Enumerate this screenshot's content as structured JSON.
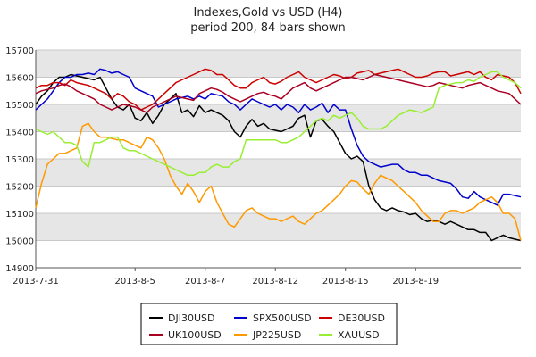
{
  "chart_data": {
    "type": "line",
    "title": "Indexes,Gold vs USD (H4)",
    "subtitle": "period 200, 84 bars shown",
    "xlabel": "",
    "ylabel": "",
    "ylim": [
      14900,
      15700
    ],
    "y_ticks": [
      14900,
      15000,
      15100,
      15200,
      15300,
      15400,
      15500,
      15600,
      15700
    ],
    "x_ticks": [
      {
        "label": "2013-7-31",
        "bar": 0
      },
      {
        "label": "2013-8-5",
        "bar": 17
      },
      {
        "label": "2013-8-7",
        "bar": 29
      },
      {
        "label": "2013-8-12",
        "bar": 41
      },
      {
        "label": "2013-8-15",
        "bar": 53
      },
      {
        "label": "2013-8-19",
        "bar": 65
      }
    ],
    "bars_shown": 84,
    "grid": "horizontal bands",
    "legend_position": "bottom",
    "series": [
      {
        "name": "DJI30USD",
        "color": "#000000",
        "values": [
          15500,
          15530,
          15550,
          15580,
          15600,
          15600,
          15610,
          15605,
          15600,
          15595,
          15590,
          15600,
          15560,
          15520,
          15490,
          15480,
          15500,
          15450,
          15440,
          15470,
          15430,
          15460,
          15500,
          15520,
          15540,
          15470,
          15480,
          15455,
          15495,
          15470,
          15480,
          15470,
          15460,
          15440,
          15400,
          15380,
          15420,
          15445,
          15420,
          15430,
          15410,
          15405,
          15400,
          15410,
          15420,
          15450,
          15460,
          15380,
          15440,
          15445,
          15420,
          15400,
          15360,
          15320,
          15300,
          15310,
          15290,
          15200,
          15150,
          15120,
          15110,
          15120,
          15110,
          15105,
          15095,
          15100,
          15080,
          15070,
          15075,
          15070,
          15060,
          15070,
          15060,
          15050,
          15040,
          15040,
          15030,
          15030,
          15000,
          15010,
          15020,
          15010,
          15005,
          15000
        ]
      },
      {
        "name": "SPX500USD",
        "color": "#0000cc",
        "values": [
          15480,
          15500,
          15520,
          15550,
          15580,
          15600,
          15600,
          15610,
          15610,
          15615,
          15610,
          15630,
          15625,
          15615,
          15620,
          15610,
          15600,
          15560,
          15550,
          15540,
          15530,
          15490,
          15500,
          15510,
          15520,
          15525,
          15530,
          15520,
          15530,
          15520,
          15540,
          15535,
          15530,
          15510,
          15500,
          15480,
          15500,
          15520,
          15510,
          15500,
          15490,
          15500,
          15480,
          15500,
          15490,
          15470,
          15500,
          15480,
          15490,
          15505,
          15470,
          15500,
          15480,
          15480,
          15410,
          15350,
          15310,
          15290,
          15280,
          15270,
          15275,
          15280,
          15280,
          15260,
          15250,
          15250,
          15240,
          15240,
          15230,
          15220,
          15215,
          15210,
          15190,
          15160,
          15155,
          15180,
          15160,
          15150,
          15140,
          15130,
          15170,
          15170,
          15165,
          15160
        ]
      },
      {
        "name": "DE30USD",
        "color": "#cc0000",
        "values": [
          15560,
          15570,
          15570,
          15580,
          15580,
          15570,
          15590,
          15580,
          15575,
          15570,
          15560,
          15550,
          15540,
          15520,
          15540,
          15530,
          15510,
          15500,
          15480,
          15490,
          15500,
          15520,
          15540,
          15560,
          15580,
          15590,
          15600,
          15610,
          15620,
          15630,
          15625,
          15610,
          15610,
          15590,
          15570,
          15560,
          15560,
          15580,
          15590,
          15600,
          15580,
          15575,
          15585,
          15600,
          15610,
          15620,
          15600,
          15590,
          15580,
          15590,
          15600,
          15610,
          15605,
          15595,
          15600,
          15615,
          15620,
          15625,
          15610,
          15615,
          15620,
          15625,
          15630,
          15620,
          15610,
          15600,
          15600,
          15605,
          15615,
          15620,
          15620,
          15605,
          15610,
          15615,
          15620,
          15610,
          15620,
          15600,
          15590,
          15610,
          15605,
          15600,
          15580,
          15540
        ]
      },
      {
        "name": "UK100USD",
        "color": "#aa0022",
        "values": [
          15540,
          15550,
          15555,
          15560,
          15570,
          15575,
          15565,
          15550,
          15540,
          15530,
          15520,
          15500,
          15490,
          15480,
          15490,
          15500,
          15495,
          15490,
          15480,
          15470,
          15490,
          15500,
          15510,
          15520,
          15530,
          15525,
          15520,
          15515,
          15540,
          15550,
          15560,
          15555,
          15545,
          15530,
          15520,
          15510,
          15520,
          15530,
          15540,
          15545,
          15535,
          15530,
          15520,
          15540,
          15560,
          15570,
          15580,
          15560,
          15550,
          15560,
          15570,
          15580,
          15590,
          15600,
          15600,
          15595,
          15590,
          15600,
          15610,
          15605,
          15600,
          15595,
          15590,
          15585,
          15580,
          15575,
          15570,
          15565,
          15570,
          15580,
          15575,
          15570,
          15565,
          15560,
          15570,
          15575,
          15580,
          15570,
          15560,
          15550,
          15545,
          15540,
          15520,
          15500
        ]
      },
      {
        "name": "JP225USD",
        "color": "#ff9900",
        "values": [
          15120,
          15210,
          15280,
          15300,
          15320,
          15320,
          15330,
          15340,
          15420,
          15430,
          15400,
          15380,
          15380,
          15375,
          15370,
          15370,
          15360,
          15350,
          15340,
          15380,
          15370,
          15340,
          15300,
          15240,
          15200,
          15170,
          15210,
          15180,
          15140,
          15180,
          15200,
          15140,
          15100,
          15060,
          15050,
          15080,
          15110,
          15120,
          15100,
          15090,
          15080,
          15080,
          15070,
          15080,
          15090,
          15070,
          15060,
          15080,
          15100,
          15110,
          15130,
          15150,
          15170,
          15200,
          15220,
          15215,
          15190,
          15170,
          15210,
          15240,
          15230,
          15220,
          15200,
          15180,
          15160,
          15140,
          15110,
          15090,
          15070,
          15070,
          15100,
          15110,
          15110,
          15100,
          15110,
          15120,
          15140,
          15150,
          15160,
          15140,
          15100,
          15100,
          15080,
          15000
        ]
      },
      {
        "name": "XAUUSD",
        "color": "#99ee33",
        "values": [
          15410,
          15400,
          15390,
          15400,
          15380,
          15360,
          15360,
          15350,
          15290,
          15270,
          15360,
          15360,
          15370,
          15380,
          15380,
          15340,
          15330,
          15330,
          15320,
          15310,
          15300,
          15290,
          15280,
          15270,
          15260,
          15250,
          15240,
          15240,
          15250,
          15250,
          15270,
          15280,
          15270,
          15270,
          15290,
          15300,
          15370,
          15370,
          15370,
          15370,
          15370,
          15370,
          15360,
          15360,
          15370,
          15380,
          15400,
          15420,
          15440,
          15450,
          15440,
          15460,
          15450,
          15460,
          15470,
          15450,
          15420,
          15410,
          15410,
          15410,
          15420,
          15440,
          15460,
          15470,
          15480,
          15475,
          15470,
          15480,
          15490,
          15560,
          15570,
          15575,
          15580,
          15580,
          15590,
          15585,
          15600,
          15610,
          15620,
          15620,
          15600,
          15590,
          15580,
          15560
        ]
      }
    ]
  }
}
